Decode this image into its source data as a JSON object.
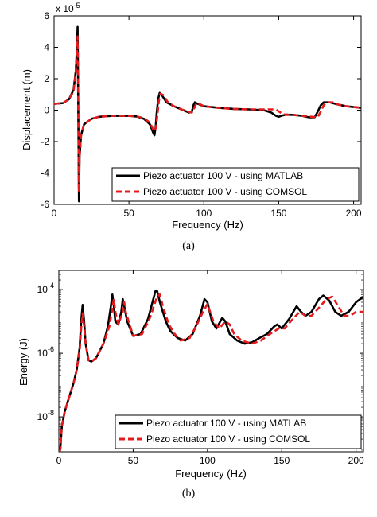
{
  "chart_data": [
    {
      "type": "line",
      "panel_caption": "(a)",
      "xlabel": "Frequency (Hz)",
      "ylabel": "Displacement (m)",
      "y_multiplier": "x 10",
      "y_multiplier_exp": "-5",
      "xlim": [
        0,
        205
      ],
      "ylim": [
        -6,
        6
      ],
      "yscale": "linear",
      "xticks": [
        0,
        50,
        100,
        150,
        200
      ],
      "yticks": [
        -6,
        -4,
        -2,
        0,
        2,
        4,
        6
      ],
      "legend_position": "bottom-right",
      "series": [
        {
          "name": "Piezo actuator 100 V - using MATLAB",
          "color": "#000000",
          "style": "solid",
          "points": [
            [
              0,
              0.4
            ],
            [
              6,
              0.45
            ],
            [
              10,
              0.7
            ],
            [
              13,
              1.3
            ],
            [
              14.5,
              2.5
            ],
            [
              15.3,
              4.0
            ],
            [
              15.7,
              5.3
            ],
            [
              16,
              2.0
            ],
            [
              16.3,
              -2.0
            ],
            [
              16.6,
              -5.8
            ],
            [
              17,
              -3.0
            ],
            [
              18,
              -1.6
            ],
            [
              20,
              -0.9
            ],
            [
              25,
              -0.55
            ],
            [
              30,
              -0.42
            ],
            [
              40,
              -0.35
            ],
            [
              50,
              -0.36
            ],
            [
              55,
              -0.4
            ],
            [
              60,
              -0.55
            ],
            [
              64,
              -0.9
            ],
            [
              66,
              -1.4
            ],
            [
              67,
              -1.6
            ],
            [
              67.8,
              -1.1
            ],
            [
              68.5,
              -0.2
            ],
            [
              69.5,
              0.7
            ],
            [
              70.5,
              1.1
            ],
            [
              72,
              0.95
            ],
            [
              75,
              0.5
            ],
            [
              80,
              0.25
            ],
            [
              85,
              0.05
            ],
            [
              90,
              -0.15
            ],
            [
              92,
              -0.1
            ],
            [
              93,
              0.3
            ],
            [
              94,
              0.5
            ],
            [
              96,
              0.4
            ],
            [
              100,
              0.25
            ],
            [
              110,
              0.15
            ],
            [
              120,
              0.08
            ],
            [
              130,
              0.05
            ],
            [
              140,
              0.0
            ],
            [
              145,
              -0.15
            ],
            [
              148,
              -0.35
            ],
            [
              150,
              -0.42
            ],
            [
              152,
              -0.35
            ],
            [
              155,
              -0.28
            ],
            [
              160,
              -0.3
            ],
            [
              165,
              -0.35
            ],
            [
              170,
              -0.45
            ],
            [
              174,
              -0.45
            ],
            [
              176,
              -0.1
            ],
            [
              178,
              0.3
            ],
            [
              180,
              0.5
            ],
            [
              184,
              0.5
            ],
            [
              190,
              0.35
            ],
            [
              195,
              0.25
            ],
            [
              200,
              0.2
            ],
            [
              205,
              0.15
            ]
          ]
        },
        {
          "name": "Piezo actuator 100 V - using COMSOL",
          "color": "#e41a1c",
          "style": "dashed",
          "points": [
            [
              0,
              0.4
            ],
            [
              6,
              0.45
            ],
            [
              10,
              0.7
            ],
            [
              13,
              1.2
            ],
            [
              14.5,
              2.4
            ],
            [
              15.3,
              3.8
            ],
            [
              15.7,
              4.7
            ],
            [
              16,
              2.0
            ],
            [
              16.3,
              -1.8
            ],
            [
              16.6,
              -5.2
            ],
            [
              17,
              -3.0
            ],
            [
              18,
              -1.6
            ],
            [
              20,
              -0.9
            ],
            [
              25,
              -0.55
            ],
            [
              30,
              -0.42
            ],
            [
              40,
              -0.35
            ],
            [
              50,
              -0.36
            ],
            [
              55,
              -0.4
            ],
            [
              60,
              -0.5
            ],
            [
              64,
              -0.8
            ],
            [
              66,
              -1.2
            ],
            [
              67,
              -1.35
            ],
            [
              68,
              -1.1
            ],
            [
              69,
              -0.3
            ],
            [
              70,
              0.6
            ],
            [
              71,
              1.05
            ],
            [
              73,
              0.95
            ],
            [
              76,
              0.5
            ],
            [
              80,
              0.25
            ],
            [
              85,
              0.05
            ],
            [
              90,
              -0.1
            ],
            [
              92,
              -0.15
            ],
            [
              94,
              0.2
            ],
            [
              95,
              0.45
            ],
            [
              97,
              0.4
            ],
            [
              100,
              0.25
            ],
            [
              110,
              0.15
            ],
            [
              120,
              0.08
            ],
            [
              130,
              0.05
            ],
            [
              140,
              0.05
            ],
            [
              148,
              0.05
            ],
            [
              152,
              -0.2
            ],
            [
              155,
              -0.3
            ],
            [
              160,
              -0.3
            ],
            [
              165,
              -0.35
            ],
            [
              170,
              -0.4
            ],
            [
              176,
              -0.45
            ],
            [
              178,
              -0.1
            ],
            [
              180,
              0.3
            ],
            [
              182,
              0.5
            ],
            [
              186,
              0.5
            ],
            [
              190,
              0.35
            ],
            [
              195,
              0.25
            ],
            [
              200,
              0.2
            ],
            [
              205,
              0.15
            ]
          ]
        }
      ]
    },
    {
      "type": "line",
      "panel_caption": "(b)",
      "xlabel": "Frequency (Hz)",
      "ylabel": "Energy (J)",
      "xlim": [
        0,
        205
      ],
      "ylim": [
        8e-10,
        0.0004
      ],
      "yscale": "log",
      "xticks": [
        0,
        50,
        100,
        150,
        200
      ],
      "yticks": [
        1e-08,
        1e-06,
        0.0001
      ],
      "ytick_labels": [
        {
          "base": "10",
          "exp": "-8"
        },
        {
          "base": "10",
          "exp": "-6"
        },
        {
          "base": "10",
          "exp": "-4"
        }
      ],
      "legend_position": "bottom-right",
      "series": [
        {
          "name": "Piezo actuator 100 V - using MATLAB",
          "color": "#000000",
          "style": "solid",
          "points": [
            [
              0.5,
              8e-10
            ],
            [
              1,
              1e-09
            ],
            [
              2,
              5e-09
            ],
            [
              4,
              1.5e-08
            ],
            [
              6,
              3e-08
            ],
            [
              8,
              6e-08
            ],
            [
              10,
              1.2e-07
            ],
            [
              12,
              3e-07
            ],
            [
              14,
              1.5e-06
            ],
            [
              15,
              1e-05
            ],
            [
              16,
              3.3e-05
            ],
            [
              17,
              1e-05
            ],
            [
              18,
              2e-06
            ],
            [
              20,
              6e-07
            ],
            [
              22,
              5.5e-07
            ],
            [
              25,
              7e-07
            ],
            [
              30,
              2e-06
            ],
            [
              33,
              7e-06
            ],
            [
              35,
              3e-05
            ],
            [
              36,
              7e-05
            ],
            [
              37,
              3e-05
            ],
            [
              38,
              1e-05
            ],
            [
              40,
              8e-06
            ],
            [
              42,
              2e-05
            ],
            [
              43,
              5e-05
            ],
            [
              44,
              3e-05
            ],
            [
              46,
              1e-05
            ],
            [
              50,
              3.5e-06
            ],
            [
              55,
              4e-06
            ],
            [
              60,
              1.2e-05
            ],
            [
              63,
              4e-05
            ],
            [
              65,
              9e-05
            ],
            [
              66,
              9.5e-05
            ],
            [
              68,
              4e-05
            ],
            [
              72,
              1e-05
            ],
            [
              75,
              5e-06
            ],
            [
              80,
              3e-06
            ],
            [
              85,
              2.5e-06
            ],
            [
              90,
              4e-06
            ],
            [
              95,
              1.5e-05
            ],
            [
              98,
              5e-05
            ],
            [
              100,
              4e-05
            ],
            [
              103,
              1e-05
            ],
            [
              106,
              6e-06
            ],
            [
              110,
              1.3e-05
            ],
            [
              112,
              1e-05
            ],
            [
              115,
              4e-06
            ],
            [
              120,
              2.5e-06
            ],
            [
              125,
              2e-06
            ],
            [
              130,
              2.2e-06
            ],
            [
              135,
              3e-06
            ],
            [
              140,
              4e-06
            ],
            [
              145,
              7e-06
            ],
            [
              147,
              8e-06
            ],
            [
              150,
              6e-06
            ],
            [
              155,
              1.2e-05
            ],
            [
              160,
              3e-05
            ],
            [
              163,
              2e-05
            ],
            [
              166,
              1.5e-05
            ],
            [
              170,
              2e-05
            ],
            [
              175,
              5e-05
            ],
            [
              178,
              6.5e-05
            ],
            [
              182,
              4.5e-05
            ],
            [
              186,
              2e-05
            ],
            [
              190,
              1.5e-05
            ],
            [
              195,
              2e-05
            ],
            [
              200,
              4e-05
            ],
            [
              205,
              6e-05
            ]
          ]
        },
        {
          "name": "Piezo actuator 100 V - using COMSOL",
          "color": "#e41a1c",
          "style": "dashed",
          "points": [
            [
              0.5,
              8e-10
            ],
            [
              1,
              1e-09
            ],
            [
              2,
              5e-09
            ],
            [
              4,
              1.5e-08
            ],
            [
              6,
              3e-08
            ],
            [
              8,
              6e-08
            ],
            [
              10,
              1.2e-07
            ],
            [
              12,
              3e-07
            ],
            [
              14,
              1.2e-06
            ],
            [
              15,
              6e-06
            ],
            [
              16,
              1.8e-05
            ],
            [
              17,
              7e-06
            ],
            [
              18,
              2e-06
            ],
            [
              20,
              6e-07
            ],
            [
              22,
              5.5e-07
            ],
            [
              25,
              7e-07
            ],
            [
              30,
              2e-06
            ],
            [
              34,
              7e-06
            ],
            [
              36,
              2.5e-05
            ],
            [
              37,
              5e-05
            ],
            [
              38,
              2e-05
            ],
            [
              40,
              8e-06
            ],
            [
              43,
              2e-05
            ],
            [
              44,
              4e-05
            ],
            [
              45,
              2e-05
            ],
            [
              47,
              1e-05
            ],
            [
              50,
              3.5e-06
            ],
            [
              56,
              4e-06
            ],
            [
              61,
              1.2e-05
            ],
            [
              64,
              3e-05
            ],
            [
              66,
              6e-05
            ],
            [
              68,
              7e-05
            ],
            [
              70,
              3e-05
            ],
            [
              74,
              8e-06
            ],
            [
              78,
              4e-06
            ],
            [
              82,
              2.5e-06
            ],
            [
              88,
              3e-06
            ],
            [
              93,
              8e-06
            ],
            [
              97,
              2e-05
            ],
            [
              100,
              3.5e-05
            ],
            [
              104,
              1e-05
            ],
            [
              108,
              6e-06
            ],
            [
              112,
              1e-05
            ],
            [
              115,
              8e-06
            ],
            [
              118,
              4e-06
            ],
            [
              123,
              2.5e-06
            ],
            [
              130,
              2e-06
            ],
            [
              136,
              2.5e-06
            ],
            [
              142,
              4e-06
            ],
            [
              148,
              6e-06
            ],
            [
              152,
              6e-06
            ],
            [
              156,
              1e-05
            ],
            [
              162,
              2e-05
            ],
            [
              166,
              1.5e-05
            ],
            [
              170,
              1.5e-05
            ],
            [
              176,
              3e-05
            ],
            [
              180,
              5e-05
            ],
            [
              184,
              6e-05
            ],
            [
              188,
              3e-05
            ],
            [
              192,
              1.5e-05
            ],
            [
              196,
              1.5e-05
            ],
            [
              200,
              2e-05
            ],
            [
              205,
              2e-05
            ]
          ]
        }
      ]
    }
  ]
}
